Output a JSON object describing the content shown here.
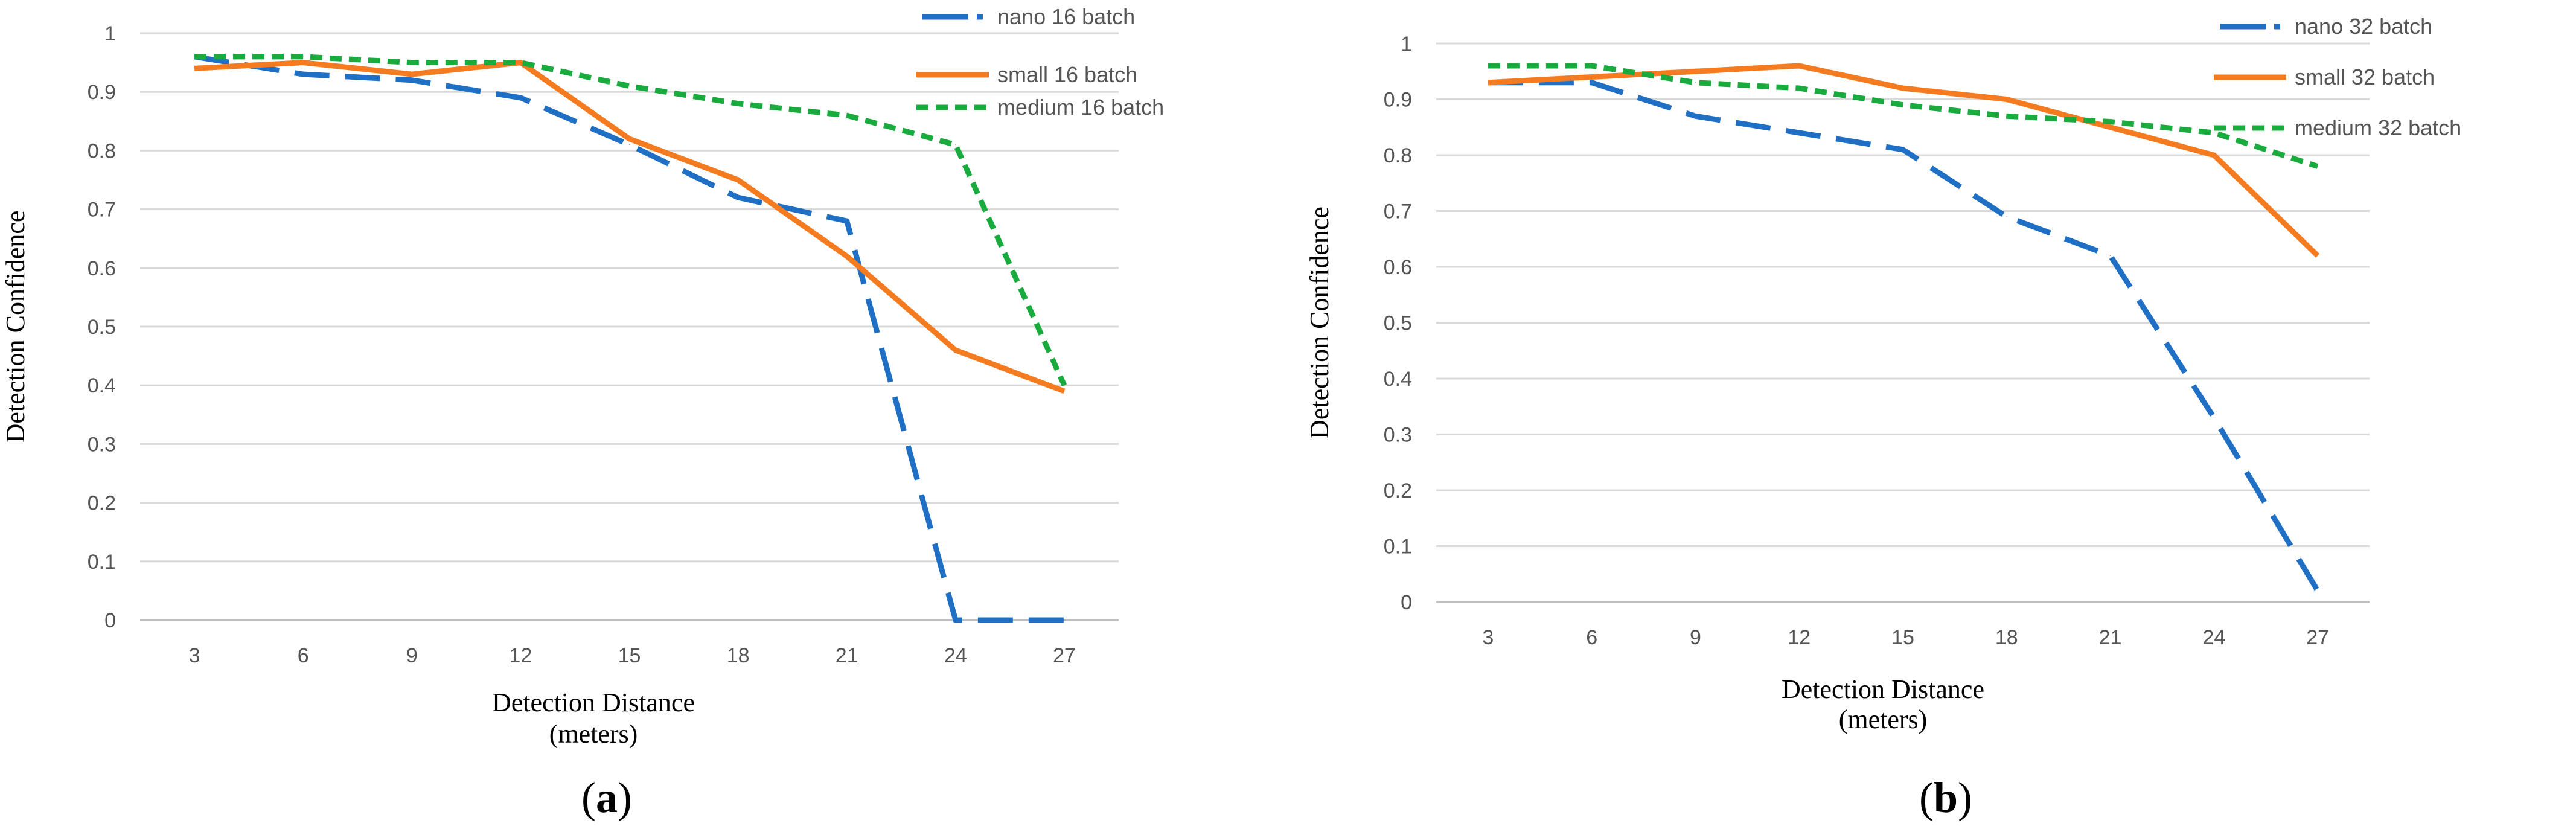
{
  "chart_data": [
    {
      "type": "line",
      "panel_label": "a",
      "xlabel": "Detection Distance",
      "xlabel_sub": "(meters)",
      "ylabel": "Detection Confidence",
      "categories": [
        "3",
        "6",
        "9",
        "12",
        "15",
        "18",
        "21",
        "24",
        "27"
      ],
      "yticks": [
        "0",
        "0.1",
        "0.2",
        "0.3",
        "0.4",
        "0.5",
        "0.6",
        "0.7",
        "0.8",
        "0.9",
        "1"
      ],
      "ylim": [
        0,
        1
      ],
      "grid": true,
      "legend_position": "top-right",
      "series": [
        {
          "name": "nano 16 batch",
          "color": "#1f6fc4",
          "style": "long-dash",
          "values": [
            0.96,
            0.93,
            0.92,
            0.89,
            0.81,
            0.72,
            0.68,
            0.0,
            0.0
          ]
        },
        {
          "name": "small 16 batch",
          "color": "#f47b20",
          "style": "solid",
          "values": [
            0.94,
            0.95,
            0.93,
            0.95,
            0.82,
            0.75,
            0.62,
            0.46,
            0.39
          ]
        },
        {
          "name": "medium 16 batch",
          "color": "#1aab3e",
          "style": "short-dash",
          "values": [
            0.96,
            0.96,
            0.95,
            0.95,
            0.91,
            0.88,
            0.86,
            0.81,
            0.4
          ]
        }
      ]
    },
    {
      "type": "line",
      "panel_label": "b",
      "xlabel": "Detection Distance",
      "xlabel_sub": "(meters)",
      "ylabel": "Detection Confidence",
      "categories": [
        "3",
        "6",
        "9",
        "12",
        "15",
        "18",
        "21",
        "24",
        "27"
      ],
      "yticks": [
        "0",
        "0.1",
        "0.2",
        "0.3",
        "0.4",
        "0.5",
        "0.6",
        "0.7",
        "0.8",
        "0.9",
        "1"
      ],
      "ylim": [
        0,
        1
      ],
      "grid": true,
      "legend_position": "right",
      "series": [
        {
          "name": "nano 32 batch",
          "color": "#1f6fc4",
          "style": "long-dash",
          "values": [
            0.93,
            0.93,
            0.87,
            0.84,
            0.81,
            0.69,
            0.62,
            0.33,
            0.02
          ]
        },
        {
          "name": "small 32 batch",
          "color": "#f47b20",
          "style": "solid",
          "values": [
            0.93,
            0.94,
            0.95,
            0.96,
            0.92,
            0.9,
            0.85,
            0.8,
            0.62
          ]
        },
        {
          "name": "medium 32 batch",
          "color": "#1aab3e",
          "style": "short-dash",
          "values": [
            0.96,
            0.96,
            0.93,
            0.92,
            0.89,
            0.87,
            0.86,
            0.84,
            0.78
          ]
        }
      ]
    }
  ]
}
